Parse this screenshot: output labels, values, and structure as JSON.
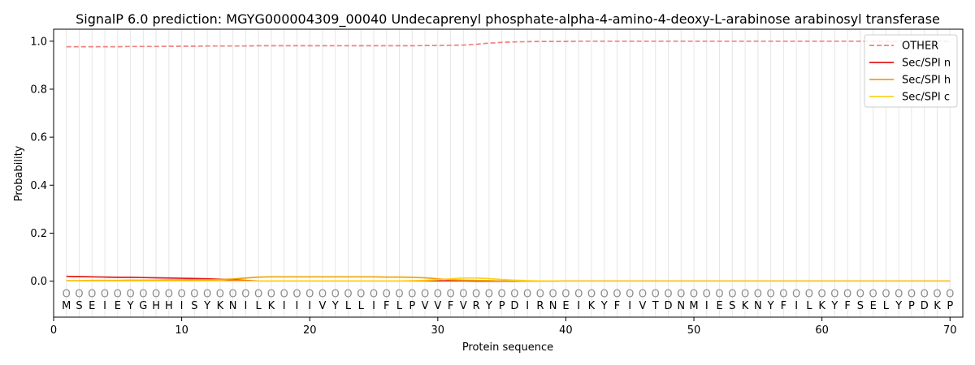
{
  "chart_data": {
    "type": "line",
    "title": "SignalP 6.0 prediction: MGYG000004309_00040 Undecaprenyl phosphate-alpha-4-amino-4-deoxy-L-arabinose arabinosyl transferase",
    "xlabel": "Protein sequence",
    "ylabel": "Probability",
    "xlim": [
      0,
      71
    ],
    "ylim": [
      -0.15,
      1.05
    ],
    "x_ticks": [
      0,
      10,
      20,
      30,
      40,
      50,
      60,
      70
    ],
    "y_ticks": [
      "0.0",
      "0.2",
      "0.4",
      "0.6",
      "0.8",
      "1.0"
    ],
    "y_tick_values": [
      0.0,
      0.2,
      0.4,
      0.6,
      0.8,
      1.0
    ],
    "grid": "vertical lines at each residue",
    "legend_position": "top-right",
    "sequence": [
      "M",
      "S",
      "E",
      "I",
      "E",
      "Y",
      "G",
      "H",
      "H",
      "I",
      "S",
      "Y",
      "K",
      "N",
      "I",
      "L",
      "K",
      "I",
      "I",
      "I",
      "V",
      "Y",
      "L",
      "L",
      "I",
      "F",
      "L",
      "P",
      "V",
      "V",
      "F",
      "V",
      "R",
      "Y",
      "P",
      "D",
      "I",
      "R",
      "N",
      "E",
      "I",
      "K",
      "Y",
      "F",
      "I",
      "V",
      "T",
      "D",
      "N",
      "M",
      "I",
      "E",
      "S",
      "K",
      "N",
      "Y",
      "F",
      "I",
      "L",
      "K",
      "Y",
      "F",
      "S",
      "E",
      "L",
      "Y",
      "P",
      "D",
      "K",
      "P"
    ],
    "marker_label": "O",
    "series": [
      {
        "name": "OTHER",
        "color": "#f08080",
        "style": "dashed",
        "values": [
          0.977,
          0.977,
          0.977,
          0.977,
          0.977,
          0.978,
          0.978,
          0.978,
          0.979,
          0.979,
          0.979,
          0.98,
          0.98,
          0.98,
          0.98,
          0.981,
          0.981,
          0.981,
          0.981,
          0.981,
          0.981,
          0.981,
          0.981,
          0.981,
          0.981,
          0.981,
          0.981,
          0.981,
          0.982,
          0.982,
          0.983,
          0.984,
          0.987,
          0.992,
          0.995,
          0.997,
          0.998,
          0.999,
          0.999,
          0.999,
          1.0,
          1.0,
          1.0,
          1.0,
          1.0,
          1.0,
          1.0,
          1.0,
          1.0,
          1.0,
          1.0,
          1.0,
          1.0,
          1.0,
          1.0,
          1.0,
          1.0,
          1.0,
          1.0,
          1.0,
          1.0,
          1.0,
          1.0,
          1.0,
          1.0,
          1.0,
          1.0,
          1.0,
          1.0,
          1.0
        ]
      },
      {
        "name": "Sec/SPI n",
        "color": "#e31a1c",
        "style": "solid",
        "values": [
          0.02,
          0.019,
          0.018,
          0.017,
          0.016,
          0.016,
          0.015,
          0.014,
          0.013,
          0.012,
          0.011,
          0.01,
          0.008,
          0.006,
          0.003,
          0.001,
          0.001,
          0.001,
          0.001,
          0.001,
          0.001,
          0.001,
          0.001,
          0.001,
          0.001,
          0.001,
          0.001,
          0.001,
          0.001,
          0.001,
          0.001,
          0.001,
          0.0,
          0.0,
          0.0,
          0.0,
          0.0,
          0.0,
          0.0,
          0.0,
          0.0,
          0.0,
          0.0,
          0.0,
          0.0,
          0.0,
          0.0,
          0.0,
          0.0,
          0.0,
          0.0,
          0.0,
          0.0,
          0.0,
          0.0,
          0.0,
          0.0,
          0.0,
          0.0,
          0.0,
          0.0,
          0.0,
          0.0,
          0.0,
          0.0,
          0.0,
          0.0,
          0.0,
          0.0,
          0.0
        ]
      },
      {
        "name": "Sec/SPI h",
        "color": "#f0a30a",
        "style": "solid",
        "values": [
          0.002,
          0.002,
          0.003,
          0.003,
          0.003,
          0.004,
          0.004,
          0.004,
          0.005,
          0.005,
          0.006,
          0.006,
          0.007,
          0.009,
          0.013,
          0.017,
          0.018,
          0.018,
          0.018,
          0.018,
          0.018,
          0.018,
          0.018,
          0.018,
          0.018,
          0.017,
          0.017,
          0.016,
          0.014,
          0.01,
          0.006,
          0.004,
          0.003,
          0.002,
          0.001,
          0.001,
          0.0,
          0.0,
          0.0,
          0.0,
          0.0,
          0.0,
          0.0,
          0.0,
          0.0,
          0.0,
          0.0,
          0.0,
          0.0,
          0.0,
          0.0,
          0.0,
          0.0,
          0.0,
          0.0,
          0.0,
          0.0,
          0.0,
          0.0,
          0.0,
          0.0,
          0.0,
          0.0,
          0.0,
          0.0,
          0.0,
          0.0,
          0.0,
          0.0,
          0.0
        ]
      },
      {
        "name": "Sec/SPI c",
        "color": "#ffd21f",
        "style": "solid",
        "values": [
          0.001,
          0.001,
          0.001,
          0.001,
          0.001,
          0.001,
          0.001,
          0.001,
          0.001,
          0.001,
          0.001,
          0.001,
          0.001,
          0.001,
          0.001,
          0.001,
          0.001,
          0.001,
          0.001,
          0.001,
          0.001,
          0.001,
          0.001,
          0.001,
          0.001,
          0.001,
          0.001,
          0.002,
          0.003,
          0.006,
          0.01,
          0.013,
          0.013,
          0.011,
          0.007,
          0.004,
          0.002,
          0.001,
          0.001,
          0.0,
          0.0,
          0.0,
          0.0,
          0.0,
          0.0,
          0.0,
          0.0,
          0.0,
          0.0,
          0.0,
          0.0,
          0.0,
          0.0,
          0.0,
          0.0,
          0.0,
          0.0,
          0.0,
          0.0,
          0.0,
          0.0,
          0.0,
          0.0,
          0.0,
          0.0,
          0.0,
          0.0,
          0.0,
          0.0,
          0.0
        ]
      }
    ]
  }
}
